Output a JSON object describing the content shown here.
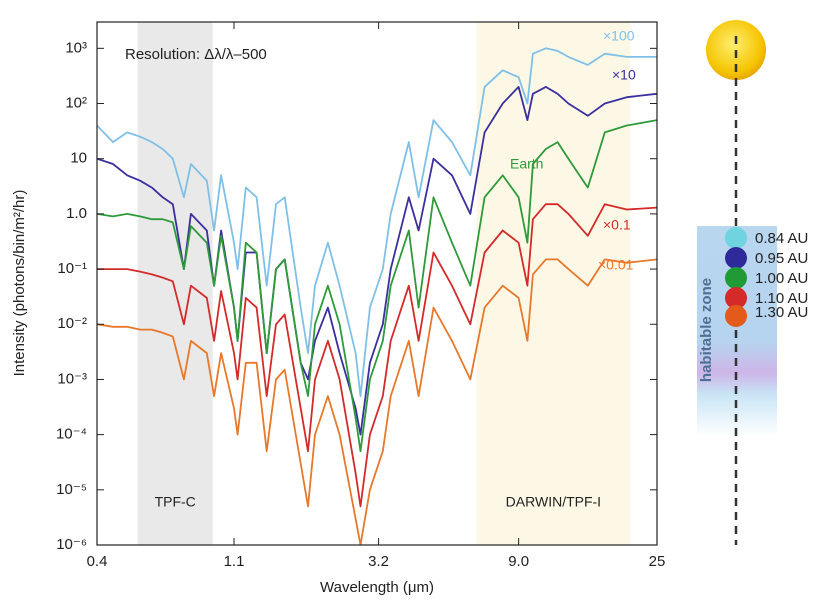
{
  "chart_data": {
    "type": "line",
    "annotation": "Resolution: Δλ/λ–500",
    "xlabel": "Wavelength (μm)",
    "ylabel": "Intensity (photons/bin/m²/hr)",
    "log_x": true,
    "log_y": true,
    "xlim": [
      0.4,
      25
    ],
    "ylim": [
      1e-06,
      3000
    ],
    "xticks": [
      0.4,
      1.1,
      3.2,
      {
        "value": 9,
        "label": "9.0"
      },
      25
    ],
    "yticks": [
      {
        "value": 1000,
        "label": "10³"
      },
      {
        "value": 100,
        "label": "10²"
      },
      10,
      {
        "value": 1,
        "label": "1.0"
      },
      {
        "value": 0.1,
        "label": "10⁻¹"
      },
      {
        "value": 0.01,
        "label": "10⁻²"
      },
      {
        "value": 0.001,
        "label": "10⁻³"
      },
      {
        "value": 0.0001,
        "label": "10⁻⁴"
      },
      {
        "value": 1e-05,
        "label": "10⁻⁵"
      },
      {
        "value": 1e-06,
        "label": "10⁻⁶"
      }
    ],
    "shaded_regions": [
      {
        "label": "TPF-C",
        "xrange": [
          0.54,
          0.94
        ],
        "color": "#e9e9e9"
      },
      {
        "label": "DARWIN/TPF-I",
        "xrange": [
          6.6,
          20.5
        ],
        "color": "#fdf8e6"
      }
    ],
    "x": [
      0.4,
      0.45,
      0.5,
      0.55,
      0.6,
      0.65,
      0.7,
      0.76,
      0.8,
      0.9,
      0.95,
      1.0,
      1.1,
      1.13,
      1.2,
      1.3,
      1.4,
      1.5,
      1.6,
      1.8,
      1.9,
      2.0,
      2.2,
      2.4,
      2.7,
      2.8,
      3.0,
      3.3,
      3.5,
      4.0,
      4.3,
      4.8,
      5.5,
      6.3,
      7,
      8,
      9,
      9.6,
      10,
      11,
      12,
      13,
      15,
      17,
      20,
      25
    ],
    "series": [
      {
        "name": "×100",
        "color": "#7fc0e8",
        "values": [
          40,
          20,
          30,
          25,
          20,
          15,
          10,
          2,
          8,
          4,
          0.5,
          5,
          0.3,
          0.1,
          3,
          2,
          0.05,
          1.5,
          2,
          0.02,
          0.003,
          0.05,
          0.3,
          0.05,
          0.003,
          0.0005,
          0.02,
          0.1,
          1,
          20,
          2,
          50,
          20,
          5,
          200,
          400,
          300,
          100,
          800,
          1000,
          900,
          700,
          500,
          800,
          700,
          700
        ]
      },
      {
        "name": "×10",
        "color": "#3a2f9e",
        "values": [
          10,
          8,
          5,
          4,
          3,
          2,
          1.5,
          0.1,
          1,
          0.5,
          0.05,
          0.5,
          0.02,
          0.005,
          0.2,
          0.2,
          0.003,
          0.1,
          0.15,
          0.002,
          0.001,
          0.005,
          0.02,
          0.003,
          0.0003,
          0.0001,
          0.002,
          0.01,
          0.1,
          2,
          0.5,
          10,
          5,
          1,
          30,
          100,
          200,
          50,
          150,
          200,
          150,
          100,
          60,
          100,
          130,
          150
        ]
      },
      {
        "name": "Earth",
        "color": "#2f9a3a",
        "values": [
          1.0,
          0.9,
          1.0,
          0.9,
          0.8,
          0.8,
          0.7,
          0.1,
          0.6,
          0.3,
          0.05,
          0.4,
          0.02,
          0.005,
          0.3,
          0.2,
          0.003,
          0.1,
          0.15,
          0.002,
          0.0005,
          0.01,
          0.05,
          0.01,
          0.0002,
          5e-05,
          0.001,
          0.005,
          0.05,
          0.5,
          0.02,
          2,
          0.3,
          0.05,
          2,
          5,
          2,
          0.3,
          8,
          15,
          20,
          10,
          3,
          30,
          40,
          50
        ]
      },
      {
        "name": "×0.1",
        "color": "#d42a2a",
        "values": [
          0.1,
          0.1,
          0.1,
          0.09,
          0.08,
          0.07,
          0.06,
          0.01,
          0.05,
          0.03,
          0.005,
          0.04,
          0.003,
          0.001,
          0.03,
          0.02,
          0.0005,
          0.01,
          0.015,
          0.0003,
          5e-05,
          0.001,
          0.005,
          0.001,
          2e-05,
          5e-06,
          0.0001,
          0.0005,
          0.005,
          0.05,
          0.005,
          0.2,
          0.05,
          0.01,
          0.2,
          0.5,
          0.3,
          0.05,
          0.8,
          1.5,
          1.5,
          1.0,
          0.4,
          1.5,
          1.2,
          1.3
        ]
      },
      {
        "name": "×0.01",
        "color": "#e8782a",
        "values": [
          0.01,
          0.009,
          0.009,
          0.008,
          0.008,
          0.007,
          0.006,
          0.001,
          0.005,
          0.003,
          0.0005,
          0.003,
          0.0003,
          0.0001,
          0.002,
          0.002,
          5e-05,
          0.001,
          0.0015,
          3e-05,
          5e-06,
          0.0001,
          0.0005,
          0.0001,
          3e-06,
          1e-06,
          1e-05,
          5e-05,
          0.0005,
          0.005,
          0.0005,
          0.02,
          0.005,
          0.001,
          0.02,
          0.05,
          0.03,
          0.005,
          0.08,
          0.15,
          0.15,
          0.1,
          0.05,
          0.15,
          0.13,
          0.15
        ]
      }
    ]
  },
  "diagram": {
    "zone_label": "habitable zone",
    "orbits": [
      {
        "label": "0.84 AU",
        "color": "#6fd3e0"
      },
      {
        "label": "0.95 AU",
        "color": "#2e2a9a"
      },
      {
        "label": "1.00 AU",
        "color": "#1f9a35"
      },
      {
        "label": "1.10 AU",
        "color": "#d42a2a"
      },
      {
        "label": "1.30 AU",
        "color": "#e45a1a"
      }
    ]
  }
}
